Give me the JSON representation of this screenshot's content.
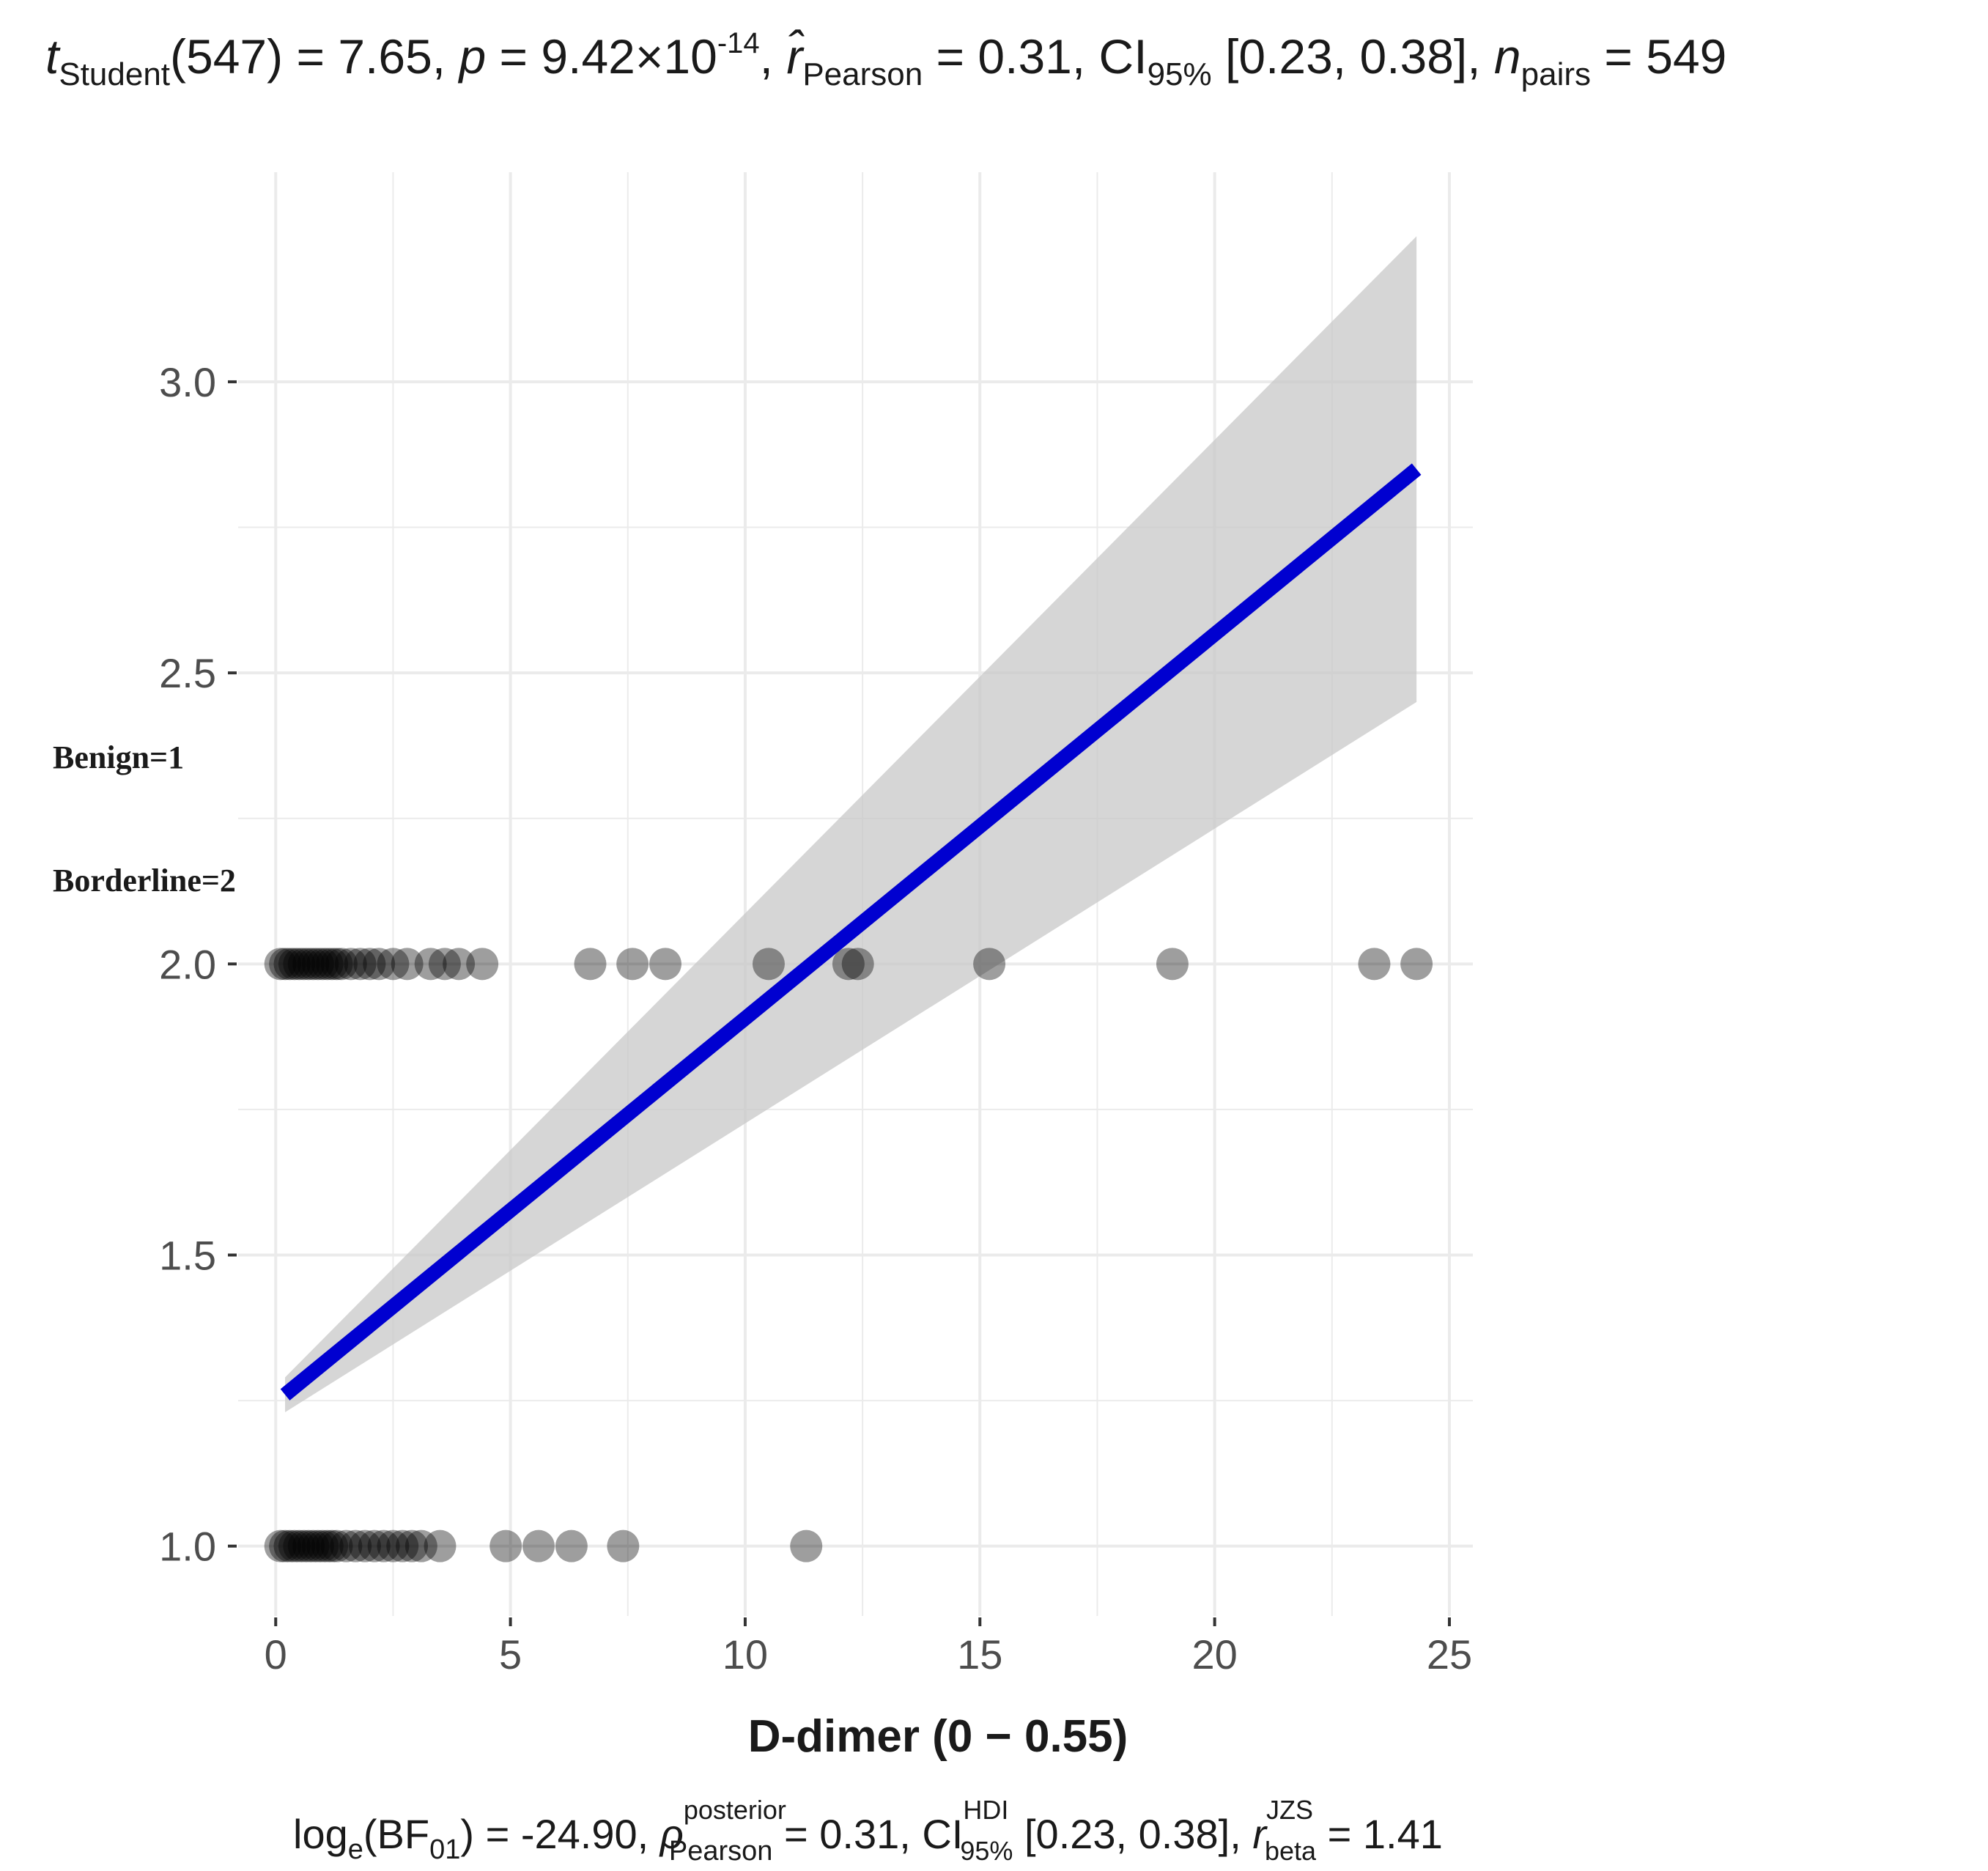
{
  "chart_data": {
    "type": "scatter",
    "title": {
      "t_sym": "t",
      "t_sub": "Student",
      "df_text": "(547)",
      "t_value_text": " = 7.65, ",
      "p_sym": "p",
      "p_value_text": " = 9.42×10",
      "p_exp": "-14",
      "after_p": ", ",
      "r_sym": "r̂",
      "r_sub": "Pearson",
      "r_value_text": " = 0.31, CI",
      "ci_sub": "95%",
      "ci_text": " [0.23, 0.38], ",
      "n_sym": "n",
      "n_sub": "pairs",
      "n_value_text": " = 549"
    },
    "subtitle": {
      "log_text": "log",
      "log_sub": "e",
      "bf_text": "(BF",
      "bf_sub": "01",
      "bf_value_text": ") = -24.90, ",
      "rho_sym": "ρ",
      "rho_sup": "posterior",
      "rho_sub": "Pearson",
      "rho_value_text": " = 0.31, CI",
      "ci_sup": "HDI",
      "ci_sub": "95%",
      "ci_text": " [0.23, 0.38], ",
      "rbeta_sym": "r",
      "rbeta_sup": "JZS",
      "rbeta_sub": "beta",
      "rbeta_value_text": " = 1.41"
    },
    "xlabel": "D-dimer  (0 − 0.55)",
    "ylabel": "",
    "xlim": [
      -0.8,
      25.5
    ],
    "ylim": [
      0.88,
      3.36
    ],
    "x_ticks": [
      0,
      5,
      10,
      15,
      20,
      25
    ],
    "y_ticks": [
      1.0,
      1.5,
      2.0,
      2.5,
      3.0
    ],
    "x_tick_labels": [
      "0",
      "5",
      "10",
      "15",
      "20",
      "25"
    ],
    "y_tick_labels": [
      "1.0",
      "1.5",
      "2.0",
      "2.5",
      "3.0"
    ],
    "grid": true,
    "annotations": [
      "Benign=1",
      "Borderline=2"
    ],
    "regression": {
      "x": [
        0.2,
        24.3
      ],
      "y": [
        1.26,
        2.85
      ],
      "ci_lower": [
        1.23,
        2.45
      ],
      "ci_upper": [
        1.29,
        3.25
      ],
      "color": "#0000d0"
    },
    "series": [
      {
        "values": [
          {
            "x": 0.1,
            "y": 1.0
          },
          {
            "x": 0.2,
            "y": 1.0
          },
          {
            "x": 0.3,
            "y": 1.0
          },
          {
            "x": 0.4,
            "y": 1.0
          },
          {
            "x": 0.5,
            "y": 1.0
          },
          {
            "x": 0.6,
            "y": 1.0
          },
          {
            "x": 0.7,
            "y": 1.0
          },
          {
            "x": 0.8,
            "y": 1.0
          },
          {
            "x": 0.9,
            "y": 1.0
          },
          {
            "x": 1.0,
            "y": 1.0
          },
          {
            "x": 1.1,
            "y": 1.0
          },
          {
            "x": 1.2,
            "y": 1.0
          },
          {
            "x": 1.3,
            "y": 1.0
          },
          {
            "x": 1.5,
            "y": 1.0
          },
          {
            "x": 1.7,
            "y": 1.0
          },
          {
            "x": 1.9,
            "y": 1.0
          },
          {
            "x": 2.1,
            "y": 1.0
          },
          {
            "x": 2.3,
            "y": 1.0
          },
          {
            "x": 2.5,
            "y": 1.0
          },
          {
            "x": 2.7,
            "y": 1.0
          },
          {
            "x": 2.9,
            "y": 1.0
          },
          {
            "x": 3.1,
            "y": 1.0
          },
          {
            "x": 3.5,
            "y": 1.0
          },
          {
            "x": 4.9,
            "y": 1.0
          },
          {
            "x": 5.6,
            "y": 1.0
          },
          {
            "x": 6.3,
            "y": 1.0
          },
          {
            "x": 7.4,
            "y": 1.0
          },
          {
            "x": 11.3,
            "y": 1.0
          },
          {
            "x": 0.1,
            "y": 2.0
          },
          {
            "x": 0.2,
            "y": 2.0
          },
          {
            "x": 0.3,
            "y": 2.0
          },
          {
            "x": 0.4,
            "y": 2.0
          },
          {
            "x": 0.5,
            "y": 2.0
          },
          {
            "x": 0.6,
            "y": 2.0
          },
          {
            "x": 0.7,
            "y": 2.0
          },
          {
            "x": 0.8,
            "y": 2.0
          },
          {
            "x": 0.9,
            "y": 2.0
          },
          {
            "x": 1.0,
            "y": 2.0
          },
          {
            "x": 1.1,
            "y": 2.0
          },
          {
            "x": 1.2,
            "y": 2.0
          },
          {
            "x": 1.3,
            "y": 2.0
          },
          {
            "x": 1.4,
            "y": 2.0
          },
          {
            "x": 1.6,
            "y": 2.0
          },
          {
            "x": 1.8,
            "y": 2.0
          },
          {
            "x": 2.0,
            "y": 2.0
          },
          {
            "x": 2.2,
            "y": 2.0
          },
          {
            "x": 2.5,
            "y": 2.0
          },
          {
            "x": 2.8,
            "y": 2.0
          },
          {
            "x": 3.3,
            "y": 2.0
          },
          {
            "x": 3.6,
            "y": 2.0
          },
          {
            "x": 3.9,
            "y": 2.0
          },
          {
            "x": 4.4,
            "y": 2.0
          },
          {
            "x": 6.7,
            "y": 2.0
          },
          {
            "x": 7.6,
            "y": 2.0
          },
          {
            "x": 8.3,
            "y": 2.0
          },
          {
            "x": 10.5,
            "y": 2.0
          },
          {
            "x": 12.2,
            "y": 2.0
          },
          {
            "x": 12.4,
            "y": 2.0
          },
          {
            "x": 15.2,
            "y": 2.0
          },
          {
            "x": 19.1,
            "y": 2.0
          },
          {
            "x": 23.4,
            "y": 2.0
          },
          {
            "x": 24.3,
            "y": 2.0
          }
        ]
      }
    ]
  },
  "colors": {
    "point": "#000000",
    "band": "#c8c8c8",
    "line": "#0000d0",
    "grid": "#ebebeb",
    "tick_text": "#4d4d4d"
  }
}
